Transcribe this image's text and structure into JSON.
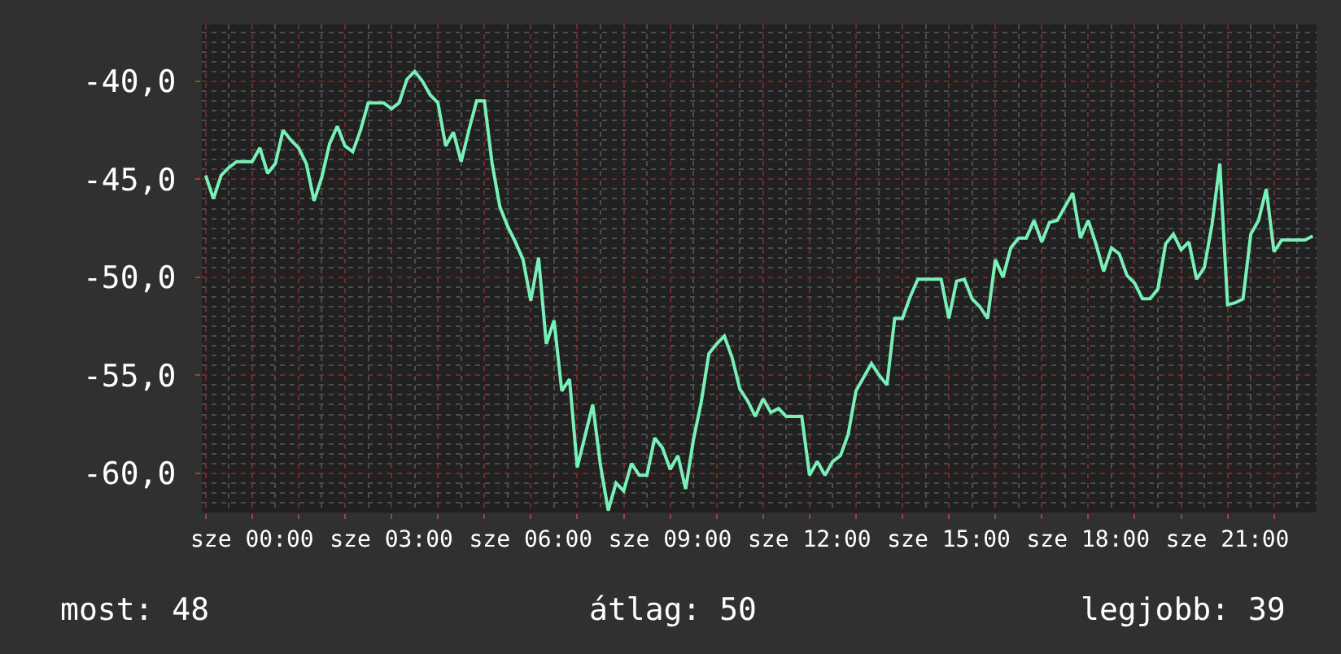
{
  "chart_data": {
    "type": "line",
    "color": "#78f0b8",
    "grid": true,
    "categories": [
      null,
      null,
      null,
      null,
      null,
      null,
      "sze 00:00",
      null,
      null,
      null,
      null,
      null,
      null,
      null,
      null,
      null,
      null,
      null,
      null,
      null,
      null,
      null,
      null,
      null,
      "sze 03:00",
      null,
      null,
      null,
      null,
      null,
      null,
      null,
      null,
      null,
      null,
      null,
      null,
      null,
      null,
      null,
      null,
      null,
      "sze 06:00",
      null,
      null,
      null,
      null,
      null,
      null,
      null,
      null,
      null,
      null,
      null,
      null,
      null,
      null,
      null,
      null,
      null,
      "sze 09:00",
      null,
      null,
      null,
      null,
      null,
      null,
      null,
      null,
      null,
      null,
      null,
      null,
      null,
      null,
      null,
      null,
      null,
      "sze 12:00",
      null,
      null,
      null,
      null,
      null,
      null,
      null,
      null,
      null,
      null,
      null,
      null,
      null,
      null,
      null,
      null,
      null,
      "sze 15:00",
      null,
      null,
      null,
      null,
      null,
      null,
      null,
      null,
      null,
      null,
      null,
      null,
      null,
      null,
      null,
      null,
      null,
      "sze 18:00",
      null,
      null,
      null,
      null,
      null,
      null,
      null,
      null,
      null,
      null,
      null,
      null,
      null,
      null,
      null,
      null,
      null,
      "sze 21:00",
      null,
      null,
      null,
      null,
      null,
      null,
      null,
      null,
      null,
      null,
      null
    ],
    "values": [
      -44.8,
      -46.0,
      -44.8,
      -44.4,
      -44.1,
      -44.1,
      -44.1,
      -43.4,
      -44.7,
      -44.2,
      -42.5,
      -43.0,
      -43.4,
      -44.2,
      -46.1,
      -44.9,
      -43.2,
      -42.3,
      -43.3,
      -43.6,
      -42.5,
      -41.1,
      -41.1,
      -41.1,
      -41.4,
      -41.1,
      -39.9,
      -39.5,
      -40.0,
      -40.7,
      -41.1,
      -43.3,
      -42.6,
      -44.1,
      -42.5,
      -41.0,
      -41.0,
      -44.2,
      -46.4,
      -47.4,
      -48.2,
      -49.1,
      -51.2,
      -49.0,
      -53.4,
      -52.2,
      -55.8,
      -55.2,
      -59.7,
      -58.1,
      -56.5,
      -59.6,
      -61.9,
      -60.5,
      -60.9,
      -59.5,
      -60.1,
      -60.1,
      -58.2,
      -58.7,
      -59.8,
      -59.1,
      -60.8,
      -58.3,
      -56.4,
      -53.9,
      -53.4,
      -53.0,
      -54.1,
      -55.7,
      -56.3,
      -57.1,
      -56.2,
      -56.9,
      -56.7,
      -57.1,
      -57.1,
      -57.1,
      -60.1,
      -59.4,
      -60.1,
      -59.4,
      -59.1,
      -58.0,
      -55.8,
      -55.1,
      -54.4,
      -55.0,
      -55.5,
      -52.1,
      -52.1,
      -51.0,
      -50.1,
      -50.1,
      -50.1,
      -50.1,
      -52.1,
      -50.2,
      -50.1,
      -51.1,
      -51.5,
      -52.1,
      -49.1,
      -50.0,
      -48.5,
      -48.0,
      -48.0,
      -47.1,
      -48.2,
      -47.2,
      -47.1,
      -46.4,
      -45.7,
      -48.0,
      -47.1,
      -48.3,
      -49.7,
      -48.5,
      -48.8,
      -49.9,
      -50.3,
      -51.1,
      -51.1,
      -50.6,
      -48.3,
      -47.8,
      -48.6,
      -48.2,
      -50.1,
      -49.5,
      -47.3,
      -44.2,
      -51.4,
      -51.3,
      -51.1,
      -47.8,
      -47.1,
      -45.5,
      -48.7,
      -48.1,
      -48.1,
      -48.1,
      -48.1,
      -47.9
    ],
    "ylim": [
      -62.0,
      -37.1
    ],
    "yticks": [
      {
        "value": -40,
        "label": "-40,0"
      },
      {
        "value": -45,
        "label": "-45,0"
      },
      {
        "value": -50,
        "label": "-50,0"
      },
      {
        "value": -55,
        "label": "-55,0"
      },
      {
        "value": -60,
        "label": "-60,0"
      }
    ],
    "annotations": [
      "most: 48",
      "átlag: 50",
      "legjobb: 39"
    ]
  }
}
